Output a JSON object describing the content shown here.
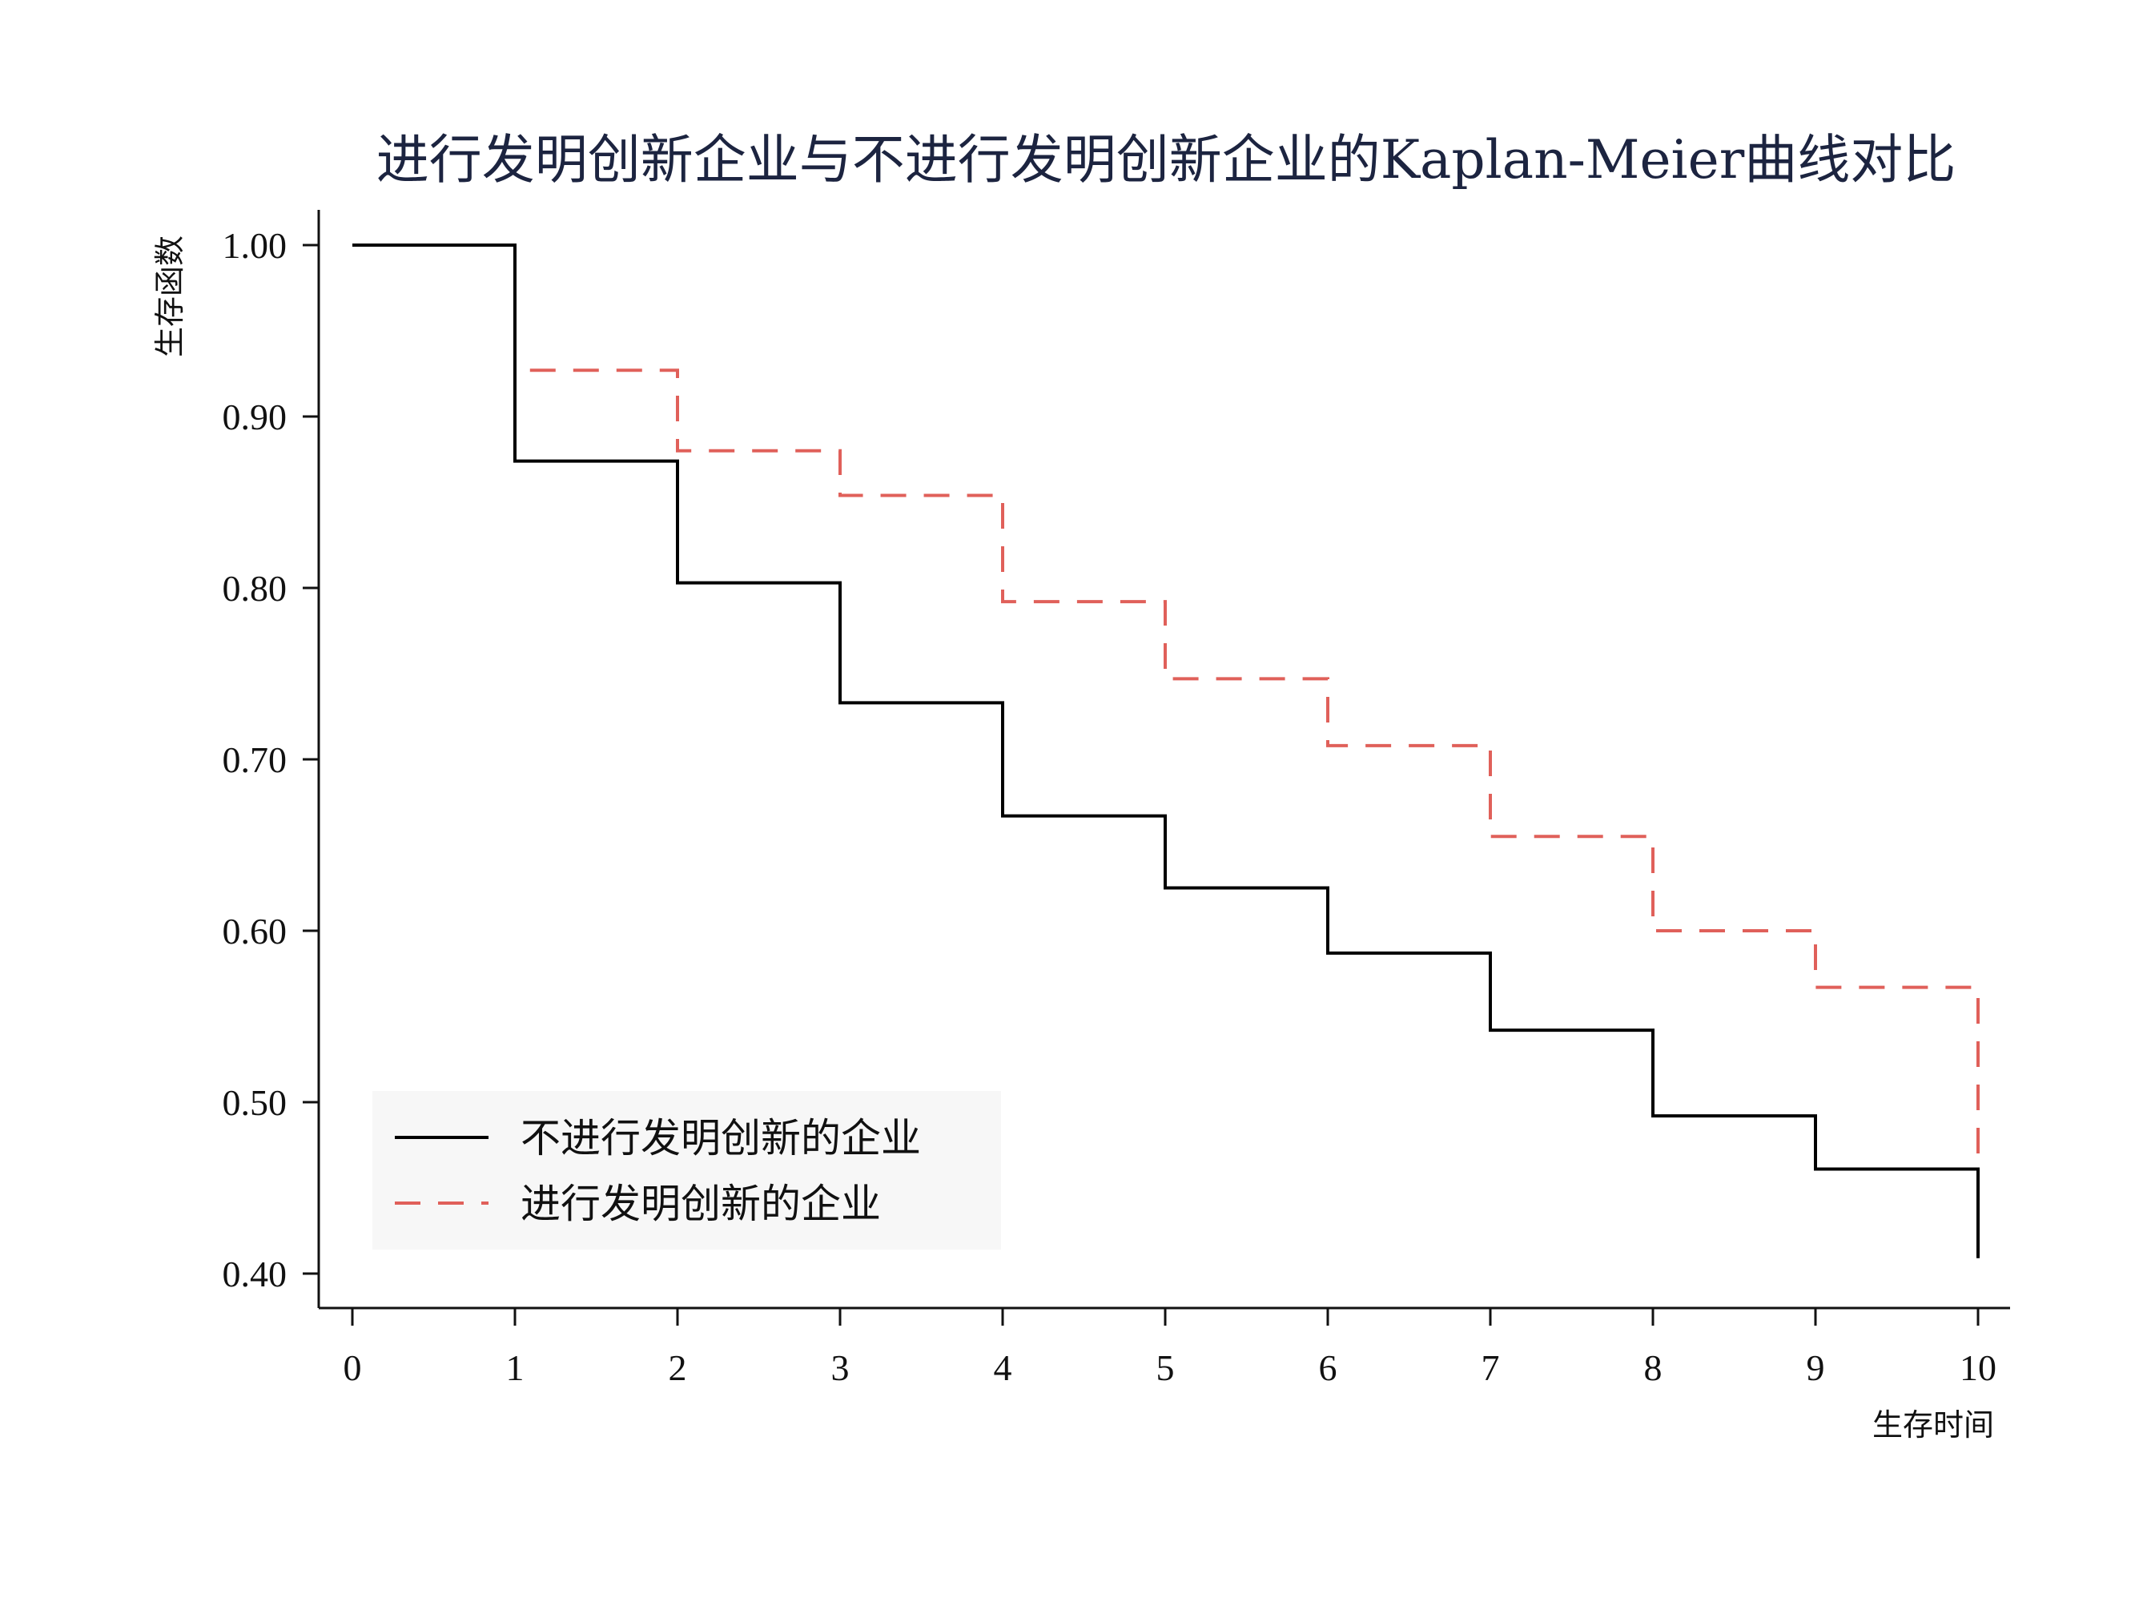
{
  "chart_data": {
    "type": "line",
    "step": true,
    "title": "进行发明创新企业与不进行发明创新企业的Kaplan-Meier曲线对比",
    "xlabel": "生存时间",
    "ylabel": "生存函数",
    "xlim": [
      0,
      10
    ],
    "ylim": [
      0.4,
      1.0
    ],
    "x": [
      0,
      1,
      2,
      3,
      4,
      5,
      6,
      7,
      8,
      9,
      10
    ],
    "x_ticks": [
      "0",
      "1",
      "2",
      "3",
      "4",
      "5",
      "6",
      "7",
      "8",
      "9",
      "10"
    ],
    "y_ticks": [
      1.0,
      0.9,
      0.8,
      0.7,
      0.6,
      0.5,
      0.4
    ],
    "y_tick_labels": [
      "1.00",
      "0.90",
      "0.80",
      "0.70",
      "0.60",
      "0.50",
      "0.40"
    ],
    "grid": false,
    "legend_position": "bottom-left",
    "series": [
      {
        "name": "不进行发明创新的企业",
        "color": "#000000",
        "dash": "solid",
        "values": [
          1.0,
          0.874,
          0.803,
          0.733,
          0.667,
          0.625,
          0.587,
          0.542,
          0.492,
          0.461,
          0.409
        ]
      },
      {
        "name": "进行发明创新的企业",
        "color": "#e0605a",
        "dash": "dashed",
        "values": [
          1.0,
          0.927,
          0.88,
          0.854,
          0.792,
          0.747,
          0.708,
          0.655,
          0.6,
          0.567,
          0.461
        ]
      }
    ]
  }
}
